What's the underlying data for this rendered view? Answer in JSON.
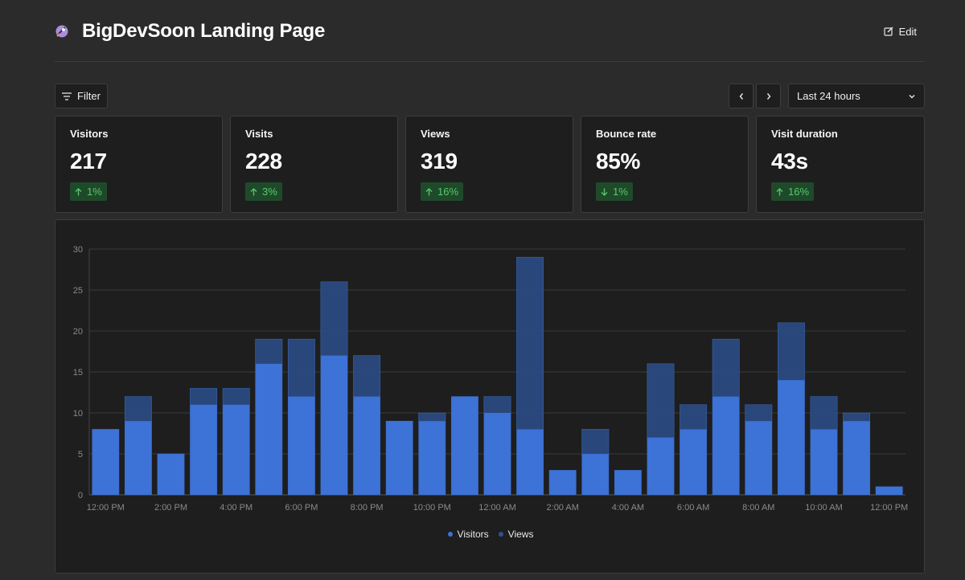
{
  "header": {
    "title": "BigDevSoon Landing Page",
    "edit_label": "Edit",
    "logo_icon": "rocket-icon"
  },
  "toolbar": {
    "filter_label": "Filter",
    "prev_icon": "chevron-left-icon",
    "next_icon": "chevron-right-icon",
    "range_value": "Last 24 hours"
  },
  "metrics": [
    {
      "label": "Visitors",
      "value": "217",
      "change": "1%",
      "direction": "up"
    },
    {
      "label": "Visits",
      "value": "228",
      "change": "3%",
      "direction": "up"
    },
    {
      "label": "Views",
      "value": "319",
      "change": "16%",
      "direction": "up"
    },
    {
      "label": "Bounce rate",
      "value": "85%",
      "change": "1%",
      "direction": "down"
    },
    {
      "label": "Visit duration",
      "value": "43s",
      "change": "16%",
      "direction": "up"
    }
  ],
  "colors": {
    "background": "#2b2b2b",
    "panel": "#1e1e1e",
    "visitors": "#3d72d6",
    "views": "#2a4a80",
    "badge_bg": "#1f4a2a",
    "badge_text": "#57c86e"
  },
  "chart_data": {
    "type": "bar",
    "stacked": "overlay",
    "categories": [
      "12:00 PM",
      "1:00 PM",
      "2:00 PM",
      "3:00 PM",
      "4:00 PM",
      "5:00 PM",
      "6:00 PM",
      "7:00 PM",
      "8:00 PM",
      "9:00 PM",
      "10:00 PM",
      "11:00 PM",
      "12:00 AM",
      "1:00 AM",
      "2:00 AM",
      "3:00 AM",
      "4:00 AM",
      "5:00 AM",
      "6:00 AM",
      "7:00 AM",
      "8:00 AM",
      "9:00 AM",
      "10:00 AM",
      "11:00 AM",
      "12:00 PM"
    ],
    "x_tick_labels": [
      "12:00 PM",
      "2:00 PM",
      "4:00 PM",
      "6:00 PM",
      "8:00 PM",
      "10:00 PM",
      "12:00 AM",
      "2:00 AM",
      "4:00 AM",
      "6:00 AM",
      "8:00 AM",
      "10:00 AM",
      "12:00 PM"
    ],
    "series": [
      {
        "name": "Visitors",
        "values": [
          8,
          9,
          5,
          11,
          11,
          16,
          12,
          17,
          12,
          9,
          9,
          12,
          10,
          8,
          3,
          5,
          3,
          7,
          8,
          12,
          9,
          14,
          8,
          9,
          1
        ]
      },
      {
        "name": "Views",
        "values": [
          8,
          12,
          5,
          13,
          13,
          19,
          19,
          26,
          17,
          9,
          10,
          12,
          12,
          29,
          3,
          8,
          3,
          16,
          11,
          19,
          11,
          21,
          12,
          10,
          1
        ]
      }
    ],
    "y_ticks": [
      0,
      5,
      10,
      15,
      20,
      25,
      30
    ],
    "ylim": [
      0,
      30
    ],
    "grid": true,
    "legend_position": "bottom-center"
  }
}
